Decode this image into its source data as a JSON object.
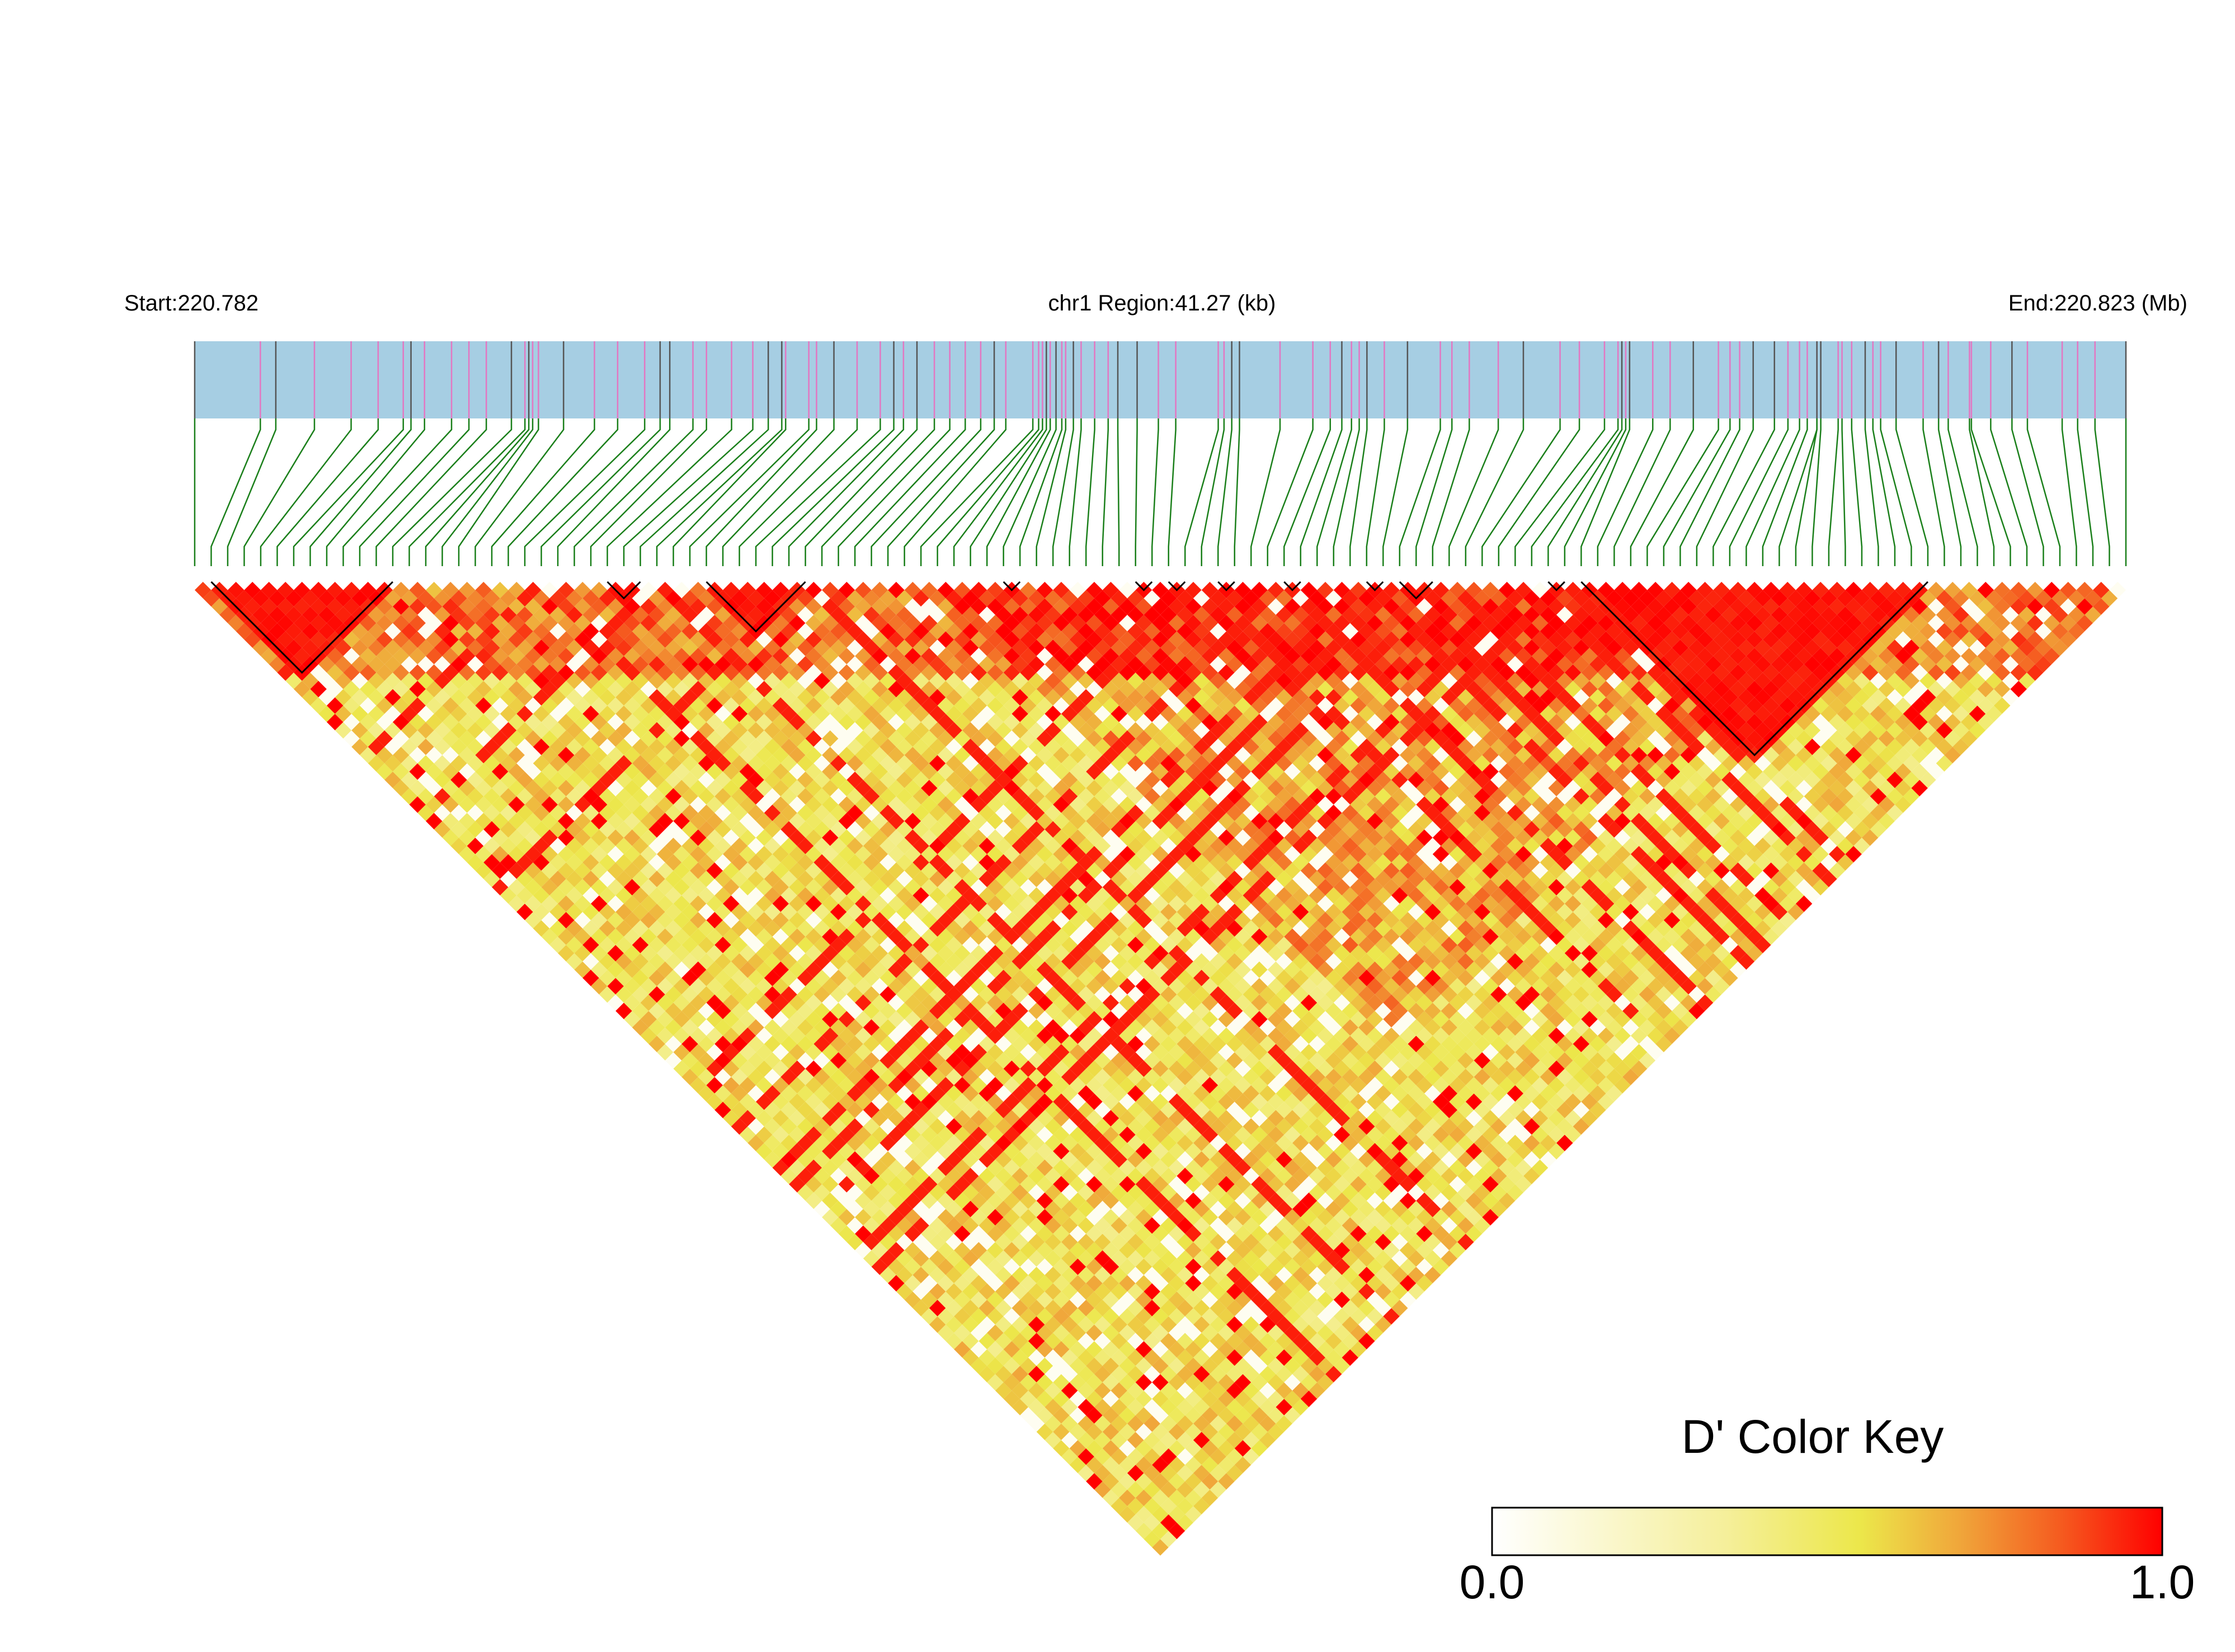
{
  "header": {
    "start_label": "Start:220.782",
    "region_label": "chr1 Region:41.27 (kb)",
    "end_label": "End:220.823 (Mb)"
  },
  "legend": {
    "title": "D' Color Key",
    "min_label": "0.0",
    "max_label": "1.0",
    "colors": [
      "#ffffff",
      "#f5ef9a",
      "#ece74a",
      "#f0a53a",
      "#f55a1f",
      "#ff0000"
    ]
  },
  "colors": {
    "gene_band": "#a6cee3",
    "snp_line_pink": "#e377c2",
    "snp_line_gray": "#555555",
    "connector": "#1a7f1a",
    "block_outline": "#000000"
  },
  "chart_data": {
    "type": "heatmap",
    "title": "",
    "value_name": "D'",
    "value_range": [
      0,
      1
    ],
    "region": {
      "chromosome": "chr1",
      "start_mb": 220.782,
      "end_mb": 220.823,
      "length_kb": 41.27
    },
    "snp_count": 118,
    "snp_positions_fraction": [
      0.0,
      0.034,
      0.042,
      0.062,
      0.081,
      0.095,
      0.108,
      0.112,
      0.119,
      0.133,
      0.142,
      0.151,
      0.164,
      0.171,
      0.173,
      0.175,
      0.178,
      0.191,
      0.207,
      0.219,
      0.233,
      0.241,
      0.246,
      0.258,
      0.265,
      0.278,
      0.289,
      0.297,
      0.304,
      0.306,
      0.318,
      0.322,
      0.331,
      0.343,
      0.355,
      0.362,
      0.367,
      0.374,
      0.383,
      0.391,
      0.399,
      0.407,
      0.414,
      0.42,
      0.434,
      0.437,
      0.439,
      0.441,
      0.443,
      0.446,
      0.449,
      0.451,
      0.455,
      0.459,
      0.466,
      0.473,
      0.478,
      0.488,
      0.499,
      0.508,
      0.53,
      0.533,
      0.537,
      0.541,
      0.562,
      0.579,
      0.588,
      0.594,
      0.599,
      0.603,
      0.607,
      0.616,
      0.628,
      0.645,
      0.651,
      0.66,
      0.675,
      0.688,
      0.707,
      0.717,
      0.73,
      0.737,
      0.739,
      0.741,
      0.743,
      0.755,
      0.764,
      0.776,
      0.789,
      0.795,
      0.8,
      0.807,
      0.818,
      0.825,
      0.831,
      0.835,
      0.84,
      0.84,
      0.842,
      0.851,
      0.853,
      0.858,
      0.865,
      0.869,
      0.873,
      0.881,
      0.895,
      0.903,
      0.908,
      0.919,
      0.92,
      0.93,
      0.941,
      0.949,
      0.967,
      0.975,
      0.984,
      1.0
    ],
    "haplotype_blocks": [
      [
        1,
        12
      ],
      [
        25,
        27
      ],
      [
        31,
        37
      ],
      [
        49,
        50
      ],
      [
        57,
        58
      ],
      [
        59,
        60
      ],
      [
        62,
        63
      ],
      [
        66,
        67
      ],
      [
        71,
        72
      ],
      [
        73,
        75
      ],
      [
        82,
        83
      ],
      [
        84,
        105
      ]
    ],
    "pattern_note_omitted": true
  }
}
